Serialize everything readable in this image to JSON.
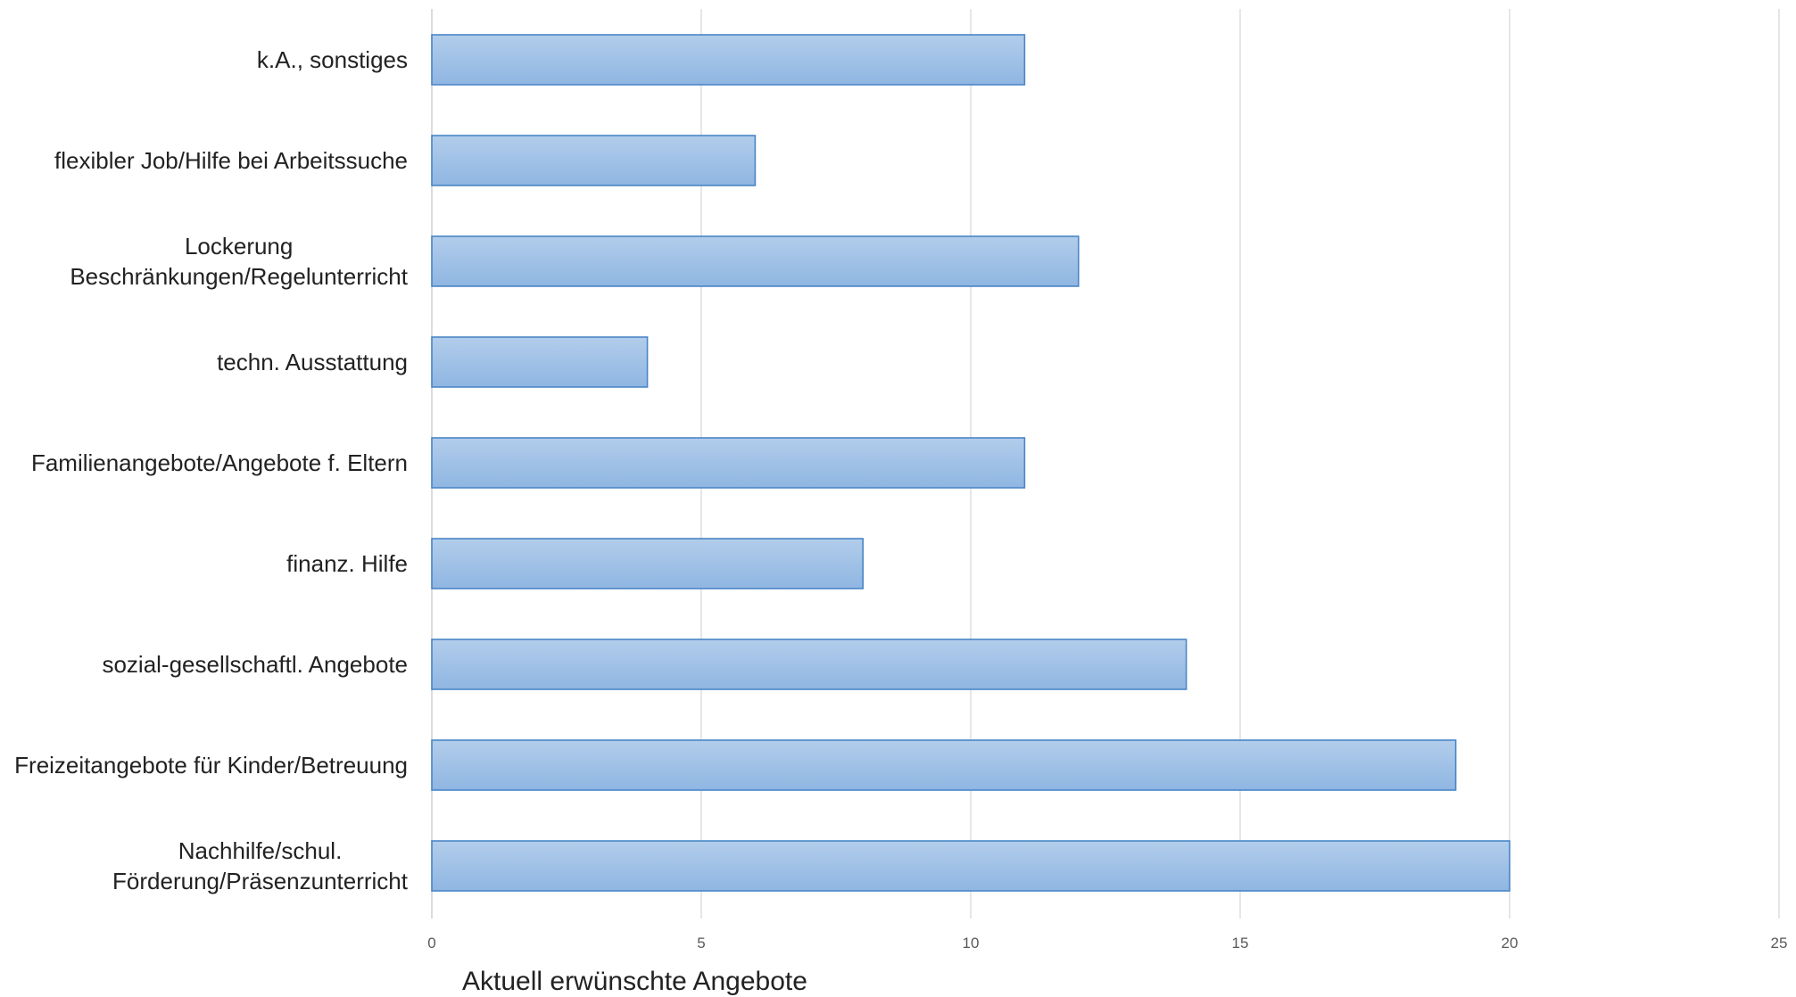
{
  "chart_data": {
    "type": "bar",
    "orientation": "horizontal",
    "categories": [
      [
        "k.A., sonstiges"
      ],
      [
        "flexibler Job/Hilfe bei Arbeitssuche"
      ],
      [
        "Lockerung",
        "Beschränkungen/Regelunterricht"
      ],
      [
        "techn. Ausstattung"
      ],
      [
        "Familienangebote/Angebote f. Eltern"
      ],
      [
        "finanz. Hilfe"
      ],
      [
        "sozial-gesellschaftl. Angebote"
      ],
      [
        "Freizeitangebote für Kinder/Betreuung"
      ],
      [
        "Nachhilfe/schul.",
        "Förderung/Präsenzunterricht"
      ]
    ],
    "values": [
      11,
      6,
      12,
      4,
      11,
      8,
      14,
      19,
      20
    ],
    "xlim": [
      0,
      25
    ],
    "xticks": [
      0,
      5,
      10,
      15,
      20,
      25
    ],
    "xlabel": "Aktuell erwünschte Angebote",
    "ylabel": "",
    "title": "",
    "grid": "vertical",
    "legend": "none",
    "colors": {
      "bar_fill_top": "#b2cdeb",
      "bar_fill_bottom": "#8fb6e2",
      "bar_stroke": "#4a86c6",
      "grid": "#d9d9d9",
      "text": "#222222",
      "tick_text": "#595959"
    }
  }
}
